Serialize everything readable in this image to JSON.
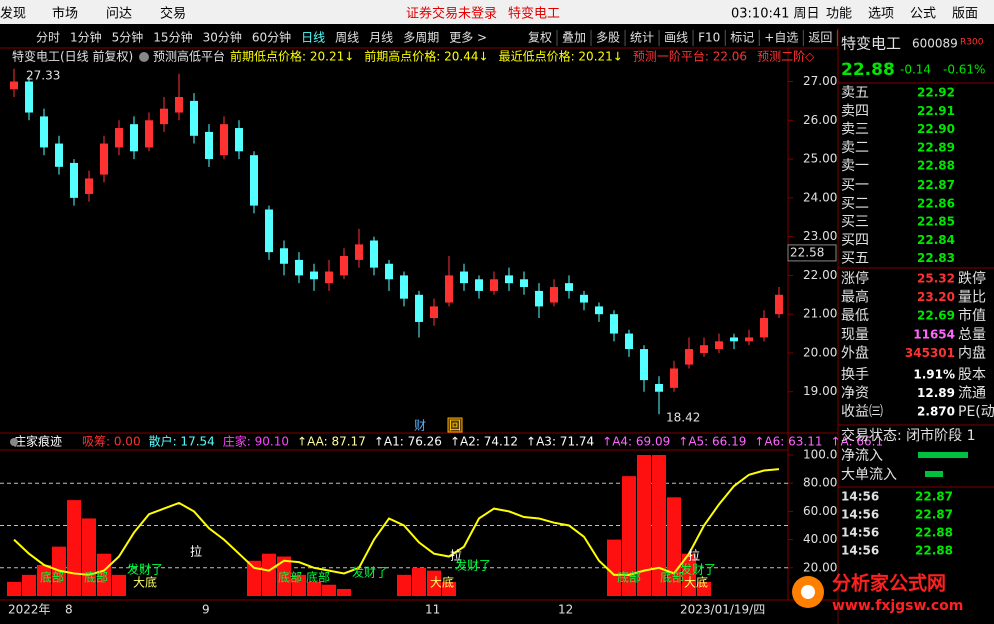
{
  "menu": {
    "items": [
      "发现",
      "市场",
      "问达",
      "交易"
    ],
    "notice": "证券交易未登录",
    "stock": "特变电工",
    "clock": "03:10:41 周日",
    "right_items": [
      "功能",
      "选项",
      "公式",
      "版面"
    ]
  },
  "toolbar": {
    "periods": [
      "分时",
      "1分钟",
      "5分钟",
      "15分钟",
      "30分钟",
      "60分钟",
      "日线",
      "周线",
      "月线",
      "多周期",
      "更多 >"
    ],
    "active": "日线",
    "tools": [
      "复权",
      "叠加",
      "多股",
      "统计",
      "画线",
      "F10",
      "标记",
      "+自选",
      "返回"
    ]
  },
  "main_chart": {
    "type": "candlestick",
    "title": "特变电工(日线 前复权)",
    "indicator": "预测高低平台",
    "labels": [
      {
        "text": "前期低点价格: 20.21↓",
        "color": "#ffff00"
      },
      {
        "text": "前期高点价格: 20.44↓",
        "color": "#ffff00"
      },
      {
        "text": "最近低点价格: 20.21↓",
        "color": "#ffff00"
      },
      {
        "text": "预测一阶平台: 22.06",
        "color": "#ff3232"
      },
      {
        "text": "预测二阶◇",
        "color": "#ff3232"
      }
    ],
    "colors": {
      "up": "#ff3232",
      "down": "#54ffff"
    },
    "ylim": [
      18.4,
      27.4
    ],
    "yticks": [
      {
        "value": 27,
        "label": "27.00"
      },
      {
        "value": 26,
        "label": "26.00"
      },
      {
        "value": 25,
        "label": "25.00"
      },
      {
        "value": 24,
        "label": "24.00"
      },
      {
        "value": 23,
        "label": "23.00"
      },
      {
        "value": 22,
        "label": "22.00"
      },
      {
        "value": 21,
        "label": "21.00"
      },
      {
        "value": 20,
        "label": "20.00"
      },
      {
        "value": 19,
        "label": "19.00"
      }
    ],
    "candles": [
      [
        26.8,
        27.0,
        26.6,
        27.33
      ],
      [
        27.0,
        26.2,
        26.0,
        27.1
      ],
      [
        26.1,
        25.3,
        25.1,
        26.3
      ],
      [
        25.4,
        24.8,
        24.6,
        25.6
      ],
      [
        24.9,
        24.0,
        23.8,
        25.0
      ],
      [
        24.1,
        24.5,
        23.9,
        24.7
      ],
      [
        24.6,
        25.4,
        24.4,
        25.6
      ],
      [
        25.3,
        25.8,
        25.1,
        26.0
      ],
      [
        25.9,
        25.2,
        25.0,
        26.1
      ],
      [
        25.3,
        26.0,
        25.2,
        26.2
      ],
      [
        25.9,
        26.3,
        25.7,
        26.6
      ],
      [
        26.2,
        26.6,
        26.0,
        27.2
      ],
      [
        26.5,
        25.6,
        25.4,
        26.7
      ],
      [
        25.7,
        25.0,
        24.8,
        25.9
      ],
      [
        25.1,
        25.9,
        25.0,
        26.1
      ],
      [
        25.8,
        25.2,
        25.0,
        26.0
      ],
      [
        25.1,
        23.8,
        23.6,
        25.2
      ],
      [
        23.7,
        22.6,
        22.4,
        23.8
      ],
      [
        22.7,
        22.3,
        22.0,
        22.9
      ],
      [
        22.4,
        22.0,
        21.8,
        22.6
      ],
      [
        22.1,
        21.9,
        21.6,
        22.3
      ],
      [
        21.8,
        22.1,
        21.6,
        22.4
      ],
      [
        22.0,
        22.5,
        21.9,
        22.7
      ],
      [
        22.4,
        22.8,
        22.2,
        23.2
      ],
      [
        22.9,
        22.2,
        22.0,
        23.0
      ],
      [
        22.3,
        21.9,
        21.6,
        22.4
      ],
      [
        22.0,
        21.4,
        21.2,
        22.1
      ],
      [
        21.5,
        20.8,
        20.4,
        21.6
      ],
      [
        20.9,
        21.2,
        20.7,
        21.4
      ],
      [
        21.3,
        22.0,
        21.2,
        22.5
      ],
      [
        22.1,
        21.8,
        21.6,
        22.3
      ],
      [
        21.9,
        21.6,
        21.4,
        22.0
      ],
      [
        21.6,
        21.9,
        21.5,
        22.1
      ],
      [
        22.0,
        21.8,
        21.6,
        22.2
      ],
      [
        21.9,
        21.7,
        21.5,
        22.1
      ],
      [
        21.6,
        21.2,
        20.9,
        21.8
      ],
      [
        21.3,
        21.7,
        21.2,
        21.9
      ],
      [
        21.8,
        21.6,
        21.4,
        22.0
      ],
      [
        21.5,
        21.3,
        21.1,
        21.6
      ],
      [
        21.2,
        21.0,
        20.8,
        21.3
      ],
      [
        21.0,
        20.5,
        20.3,
        21.1
      ],
      [
        20.5,
        20.1,
        19.9,
        20.6
      ],
      [
        20.1,
        19.3,
        19.0,
        20.2
      ],
      [
        19.2,
        19.0,
        18.42,
        19.4
      ],
      [
        19.1,
        19.6,
        19.0,
        19.8
      ],
      [
        19.7,
        20.1,
        19.6,
        20.4
      ],
      [
        20.0,
        20.2,
        19.9,
        20.4
      ],
      [
        20.1,
        20.3,
        20.0,
        20.5
      ],
      [
        20.4,
        20.3,
        20.1,
        20.5
      ],
      [
        20.3,
        20.4,
        20.2,
        20.6
      ],
      [
        20.4,
        20.9,
        20.3,
        21.1
      ],
      [
        21.0,
        21.5,
        20.9,
        21.7
      ]
    ],
    "high_label": "27.33",
    "low_label": "18.42",
    "price_marker": {
      "value": 22.58,
      "label": "22.58"
    },
    "markers": [
      "财",
      "回"
    ]
  },
  "indicator_chart": {
    "type": "indicator",
    "title": "庄家痕迹",
    "legend": [
      {
        "text": "吸筹: 0.00",
        "color": "#ff3232"
      },
      {
        "text": "散户: 17.54",
        "color": "#54ffff"
      },
      {
        "text": "庄家: 90.10",
        "color": "#ff44ff"
      },
      {
        "text": "↑AA: 87.17",
        "color": "#ffffa0"
      },
      {
        "text": "↑A1: 76.26",
        "color": "#ffffff"
      },
      {
        "text": "↑A2: 74.12",
        "color": "#ffffff"
      },
      {
        "text": "↑A3: 71.74",
        "color": "#ffffff"
      },
      {
        "text": "↑A4: 69.09",
        "color": "#ff66ff"
      },
      {
        "text": "↑A5: 66.19",
        "color": "#ff66ff"
      },
      {
        "text": "↑A6: 63.11",
        "color": "#ff66ff"
      },
      {
        "text": "↑A: 66.1",
        "color": "#ff66ff"
      }
    ],
    "ylim": [
      0,
      100
    ],
    "yticks": [
      {
        "value": 100,
        "label": "100.0"
      },
      {
        "value": 80,
        "label": "80.00"
      },
      {
        "value": 60,
        "label": "60.00"
      },
      {
        "value": 40,
        "label": "40.00"
      },
      {
        "value": 20,
        "label": "20.00"
      }
    ],
    "dashed_levels": [
      80,
      50,
      20
    ],
    "series": [
      {
        "name": "吸筹",
        "color": "#ff1010",
        "values": [
          10,
          15,
          22,
          35,
          68,
          55,
          30,
          15,
          0,
          0,
          0,
          0,
          0,
          0,
          0,
          0,
          25,
          30,
          28,
          15,
          10,
          8,
          5,
          0,
          0,
          0,
          15,
          20,
          18,
          10,
          0,
          0,
          0,
          0,
          0,
          0,
          0,
          0,
          0,
          0,
          40,
          85,
          100,
          100,
          70,
          30,
          10,
          0,
          0,
          0,
          0,
          0
        ]
      },
      {
        "name": "庄家",
        "color": "#ffff00",
        "values": [
          40,
          30,
          22,
          18,
          16,
          15,
          18,
          28,
          45,
          58,
          62,
          66,
          60,
          48,
          40,
          30,
          20,
          18,
          25,
          24,
          20,
          18,
          16,
          20,
          40,
          55,
          50,
          38,
          30,
          28,
          35,
          55,
          62,
          60,
          56,
          55,
          52,
          50,
          42,
          25,
          15,
          15,
          18,
          20,
          16,
          30,
          50,
          65,
          78,
          86,
          89,
          90
        ]
      }
    ],
    "annotations": [
      "底部",
      "底部",
      "发财了",
      "大底",
      "拉",
      "底部",
      "底部",
      "发财了",
      "拉",
      "发财了",
      "大底",
      "底部",
      "底部",
      "拉",
      "发财了",
      "大底"
    ]
  },
  "date_axis": [
    "2022年",
    "8",
    "9",
    "11",
    "12",
    "2023/01/19/四"
  ],
  "quote_panel": {
    "name": "特变电工",
    "code": "600089",
    "tag": "R300",
    "price": "22.88",
    "change": "-0.14",
    "change_pct": "-0.61%",
    "book": [
      [
        "卖五",
        "22.92"
      ],
      [
        "卖四",
        "22.91"
      ],
      [
        "卖三",
        "22.90"
      ],
      [
        "卖二",
        "22.89"
      ],
      [
        "卖一",
        "22.88"
      ],
      [
        "买一",
        "22.87"
      ],
      [
        "买二",
        "22.86"
      ],
      [
        "买三",
        "22.85"
      ],
      [
        "买四",
        "22.84"
      ],
      [
        "买五",
        "22.83"
      ]
    ],
    "stats": [
      [
        "涨停",
        "25.32",
        "跌停"
      ],
      [
        "最高",
        "23.20",
        "量比"
      ],
      [
        "最低",
        "22.69",
        "市值"
      ],
      [
        "现量",
        "11654",
        "总量"
      ],
      [
        "外盘",
        "345301",
        "内盘"
      ],
      [
        "换手",
        "1.91%",
        "股本"
      ],
      [
        "净资",
        "12.89",
        "流通"
      ],
      [
        "收益㈢",
        "2.870",
        "PE(动"
      ]
    ],
    "status": "交易状态: 闭市阶段 1",
    "flows": [
      "净流入",
      "大单流入"
    ],
    "trades": [
      [
        "14:56",
        "22.87"
      ],
      [
        "14:56",
        "22.87"
      ],
      [
        "14:56",
        "22.88"
      ],
      [
        "14:56",
        "22.88"
      ]
    ]
  },
  "watermark": {
    "name": "分析家公式网",
    "url": "www.fxjgsw.com"
  }
}
